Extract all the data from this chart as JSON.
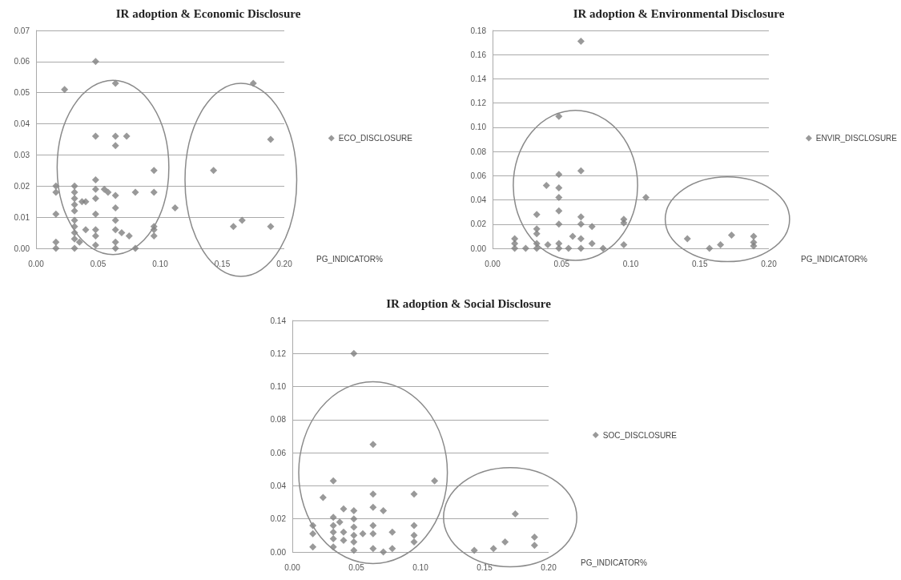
{
  "chart_data": [
    {
      "type": "scatter",
      "title": "IR adoption & Economic Disclosure",
      "xlabel": "PG_INDICATOR%",
      "legend": "right",
      "grid": "y",
      "marker": "diamond",
      "xlim": [
        0,
        0.2
      ],
      "xticks": [
        {
          "value": 0,
          "label": "0.00"
        },
        {
          "value": 0.05,
          "label": "0.05"
        },
        {
          "value": 0.1,
          "label": "0.10"
        },
        {
          "value": 0.15,
          "label": "0.15"
        },
        {
          "value": 0.2,
          "label": "0.20"
        }
      ],
      "ylim": [
        0,
        0.07
      ],
      "yticks": [
        {
          "value": 0,
          "label": "0.00"
        },
        {
          "value": 0.01,
          "label": "0.01"
        },
        {
          "value": 0.02,
          "label": "0.02"
        },
        {
          "value": 0.03,
          "label": "0.03"
        },
        {
          "value": 0.04,
          "label": "0.04"
        },
        {
          "value": 0.05,
          "label": "0.05"
        },
        {
          "value": 0.06,
          "label": "0.06"
        },
        {
          "value": 0.07,
          "label": "0.07"
        }
      ],
      "series": [
        {
          "name": "ECO_DISCLOSURE",
          "color": "#808080",
          "x": [
            0.016,
            0.016,
            0.016,
            0.016,
            0.016,
            0.023,
            0.031,
            0.031,
            0.031,
            0.031,
            0.031,
            0.031,
            0.031,
            0.031,
            0.031,
            0.031,
            0.035,
            0.037,
            0.04,
            0.04,
            0.048,
            0.048,
            0.048,
            0.048,
            0.048,
            0.048,
            0.048,
            0.048,
            0.048,
            0.055,
            0.058,
            0.064,
            0.064,
            0.064,
            0.064,
            0.064,
            0.064,
            0.064,
            0.064,
            0.064,
            0.069,
            0.073,
            0.075,
            0.08,
            0.08,
            0.095,
            0.095,
            0.095,
            0.095,
            0.095,
            0.112,
            0.143,
            0.159,
            0.166,
            0.175,
            0.189,
            0.189
          ],
          "values": [
            0.02,
            0.018,
            0.011,
            0.002,
            0.0,
            0.051,
            0.02,
            0.018,
            0.016,
            0.014,
            0.012,
            0.009,
            0.007,
            0.005,
            0.003,
            0.0,
            0.002,
            0.015,
            0.015,
            0.006,
            0.06,
            0.036,
            0.022,
            0.019,
            0.016,
            0.011,
            0.006,
            0.004,
            0.001,
            0.019,
            0.018,
            0.053,
            0.036,
            0.033,
            0.017,
            0.013,
            0.009,
            0.006,
            0.002,
            0.0,
            0.005,
            0.036,
            0.004,
            0.018,
            0.0,
            0.025,
            0.018,
            0.007,
            0.006,
            0.004,
            0.013,
            0.025,
            0.007,
            0.009,
            0.053,
            0.035,
            0.007
          ]
        }
      ]
    },
    {
      "type": "scatter",
      "title": "IR adoption & Environmental Disclosure",
      "xlabel": "PG_INDICATOR%",
      "legend": "right",
      "grid": "y",
      "marker": "diamond",
      "xlim": [
        0,
        0.2
      ],
      "xticks": [
        {
          "value": 0,
          "label": "0.00"
        },
        {
          "value": 0.05,
          "label": "0.05"
        },
        {
          "value": 0.1,
          "label": "0.10"
        },
        {
          "value": 0.15,
          "label": "0.15"
        },
        {
          "value": 0.2,
          "label": "0.20"
        }
      ],
      "ylim": [
        0,
        0.18
      ],
      "yticks": [
        {
          "value": 0,
          "label": "0.00"
        },
        {
          "value": 0.02,
          "label": "0.02"
        },
        {
          "value": 0.04,
          "label": "0.04"
        },
        {
          "value": 0.06,
          "label": "0.06"
        },
        {
          "value": 0.08,
          "label": "0.08"
        },
        {
          "value": 0.1,
          "label": "0.10"
        },
        {
          "value": 0.12,
          "label": "0.12"
        },
        {
          "value": 0.14,
          "label": "0.14"
        },
        {
          "value": 0.16,
          "label": "0.16"
        },
        {
          "value": 0.18,
          "label": "0.18"
        }
      ],
      "series": [
        {
          "name": "ENVIR_DISCLOSURE",
          "color": "#808080",
          "x": [
            0.064,
            0.048,
            0.064,
            0.048,
            0.039,
            0.048,
            0.048,
            0.048,
            0.032,
            0.048,
            0.064,
            0.064,
            0.072,
            0.095,
            0.095,
            0.095,
            0.111,
            0.032,
            0.032,
            0.058,
            0.064,
            0.072,
            0.08,
            0.016,
            0.016,
            0.016,
            0.024,
            0.032,
            0.032,
            0.04,
            0.048,
            0.048,
            0.055,
            0.064,
            0.141,
            0.157,
            0.165,
            0.173,
            0.189,
            0.189,
            0.189
          ],
          "values": [
            0.171,
            0.109,
            0.064,
            0.061,
            0.052,
            0.05,
            0.042,
            0.031,
            0.028,
            0.02,
            0.026,
            0.02,
            0.018,
            0.024,
            0.021,
            0.003,
            0.042,
            0.016,
            0.012,
            0.01,
            0.008,
            0.004,
            0.0,
            0.008,
            0.004,
            0.0,
            0.0,
            0.004,
            0.0,
            0.003,
            0.004,
            0.0,
            0.0,
            0.0,
            0.008,
            0.0,
            0.003,
            0.011,
            0.01,
            0.005,
            0.002
          ]
        }
      ]
    },
    {
      "type": "scatter",
      "title": "IR adoption & Social Disclosure",
      "xlabel": "PG_INDICATOR%",
      "legend": "right",
      "grid": "y",
      "marker": "diamond",
      "xlim": [
        0,
        0.2
      ],
      "xticks": [
        {
          "value": 0,
          "label": "0.00"
        },
        {
          "value": 0.05,
          "label": "0.05"
        },
        {
          "value": 0.1,
          "label": "0.10"
        },
        {
          "value": 0.15,
          "label": "0.15"
        },
        {
          "value": 0.2,
          "label": "0.20"
        }
      ],
      "ylim": [
        0,
        0.14
      ],
      "yticks": [
        {
          "value": 0,
          "label": "0.00"
        },
        {
          "value": 0.02,
          "label": "0.02"
        },
        {
          "value": 0.04,
          "label": "0.04"
        },
        {
          "value": 0.06,
          "label": "0.06"
        },
        {
          "value": 0.08,
          "label": "0.08"
        },
        {
          "value": 0.1,
          "label": "0.10"
        },
        {
          "value": 0.12,
          "label": "0.12"
        },
        {
          "value": 0.14,
          "label": "0.14"
        }
      ],
      "series": [
        {
          "name": "SOC_DISCLOSURE",
          "color": "#808080",
          "x": [
            0.048,
            0.063,
            0.032,
            0.024,
            0.063,
            0.095,
            0.111,
            0.063,
            0.071,
            0.04,
            0.048,
            0.032,
            0.032,
            0.032,
            0.032,
            0.032,
            0.037,
            0.04,
            0.04,
            0.048,
            0.048,
            0.048,
            0.048,
            0.048,
            0.055,
            0.063,
            0.063,
            0.063,
            0.071,
            0.078,
            0.078,
            0.095,
            0.095,
            0.095,
            0.016,
            0.016,
            0.016,
            0.142,
            0.157,
            0.166,
            0.174,
            0.189,
            0.189
          ],
          "values": [
            0.12,
            0.065,
            0.043,
            0.033,
            0.035,
            0.035,
            0.043,
            0.027,
            0.025,
            0.026,
            0.025,
            0.021,
            0.016,
            0.012,
            0.008,
            0.003,
            0.018,
            0.012,
            0.007,
            0.02,
            0.015,
            0.01,
            0.006,
            0.001,
            0.011,
            0.016,
            0.011,
            0.002,
            0.0,
            0.012,
            0.002,
            0.016,
            0.01,
            0.006,
            0.016,
            0.011,
            0.003,
            0.001,
            0.002,
            0.006,
            0.023,
            0.009,
            0.004
          ]
        }
      ]
    }
  ]
}
